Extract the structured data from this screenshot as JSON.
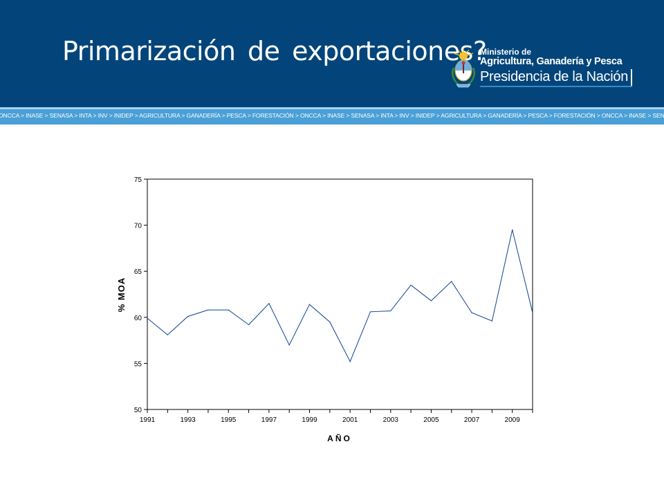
{
  "header": {
    "title": "Primarización de exportaciones?",
    "bg_color": "#03457a",
    "logo": {
      "line1": "Ministerio de",
      "line2": "Agricultura, Ganadería y Pesca",
      "line3": "Presidencia de la Nación",
      "emblem_icon": "argentina-coat-of-arms-icon"
    }
  },
  "strip": {
    "text": "ONCCA > INASE > SENASA > INTA > INV > INIDEP > AGRICULTURA > GANADERÍA > PESCA > FORESTACIÓN > ONCCA > INASE > SENASA > INTA > INV > INIDEP > AGRICULTURA > GANADERÍA > PESCA > FORESTACIÓN > ONCCA > INASE > SENASA",
    "color": "#4a9fd6"
  },
  "chart_data": {
    "type": "line",
    "title": "",
    "xlabel": "AÑO",
    "ylabel": "% MOA",
    "x": [
      1991,
      1992,
      1993,
      1994,
      1995,
      1996,
      1997,
      1998,
      1999,
      2000,
      2001,
      2002,
      2003,
      2004,
      2005,
      2006,
      2007,
      2008,
      2009,
      2010
    ],
    "x_tick_labels": [
      "1991",
      "1993",
      "1995",
      "1997",
      "1999",
      "2001",
      "2003",
      "2005",
      "2007",
      "2009"
    ],
    "y_ticks": [
      "50",
      "55",
      "60",
      "65",
      "70",
      "75"
    ],
    "xlim": [
      1991,
      2010
    ],
    "ylim": [
      50,
      75
    ],
    "grid": false,
    "series": [
      {
        "values": [
          59.9,
          58.1,
          60.1,
          60.8,
          60.8,
          59.2,
          61.5,
          57.0,
          61.4,
          59.5,
          55.2,
          60.6,
          60.7,
          63.5,
          61.8,
          63.9,
          60.5,
          59.6,
          69.5,
          60.5
        ],
        "color": "#0b3f91"
      }
    ]
  }
}
